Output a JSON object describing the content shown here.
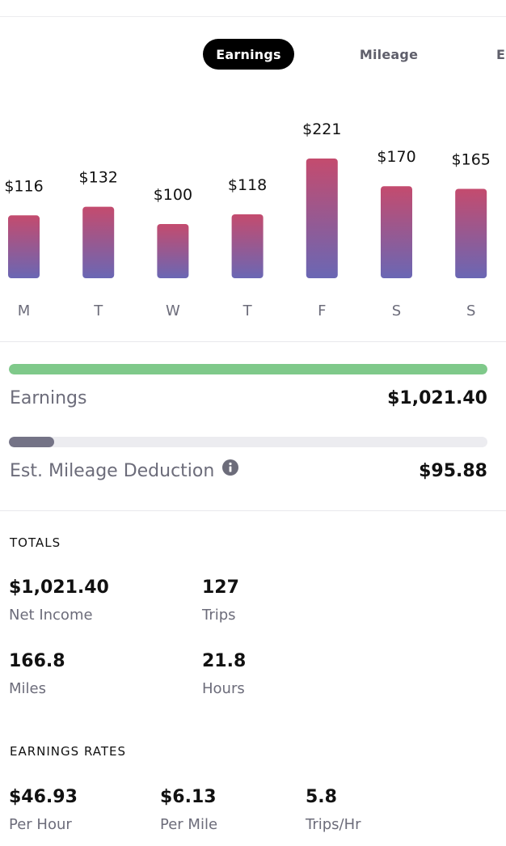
{
  "tabs": {
    "active": "Earnings",
    "second": "Mileage",
    "third_partial": "E"
  },
  "chart_data": {
    "type": "bar",
    "categories": [
      "M",
      "T",
      "W",
      "T",
      "F",
      "S",
      "S"
    ],
    "values": [
      116,
      132,
      100,
      118,
      221,
      170,
      165
    ],
    "data_labels": [
      "$116",
      "$132",
      "$100",
      "$118",
      "$221",
      "$170",
      "$165"
    ],
    "ylim": [
      0,
      240
    ],
    "grid": false,
    "legend": "none",
    "colors": {
      "bar_top": "#c44b6e",
      "bar_bottom": "#6a67b4"
    }
  },
  "summary": {
    "earnings": {
      "label": "Earnings",
      "value": "$1,021.40",
      "progress": 1.0,
      "color": "#7fc98a"
    },
    "mileage": {
      "label": "Est. Mileage Deduction",
      "value": "$95.88",
      "progress": 0.094,
      "color": "#747386",
      "icon": "info-icon"
    }
  },
  "totals": {
    "title": "TOTALS",
    "net_income": {
      "value": "$1,021.40",
      "label": "Net Income"
    },
    "trips": {
      "value": "127",
      "label": "Trips"
    },
    "miles": {
      "value": "166.8",
      "label": "Miles"
    },
    "hours": {
      "value": "21.8",
      "label": "Hours"
    }
  },
  "rates": {
    "title": "EARNINGS RATES",
    "per_hour": {
      "value": "$46.93",
      "label": "Per Hour"
    },
    "per_mile": {
      "value": "$6.13",
      "label": "Per Mile"
    },
    "trips_per_hr": {
      "value": "5.8",
      "label": "Trips/Hr"
    }
  }
}
